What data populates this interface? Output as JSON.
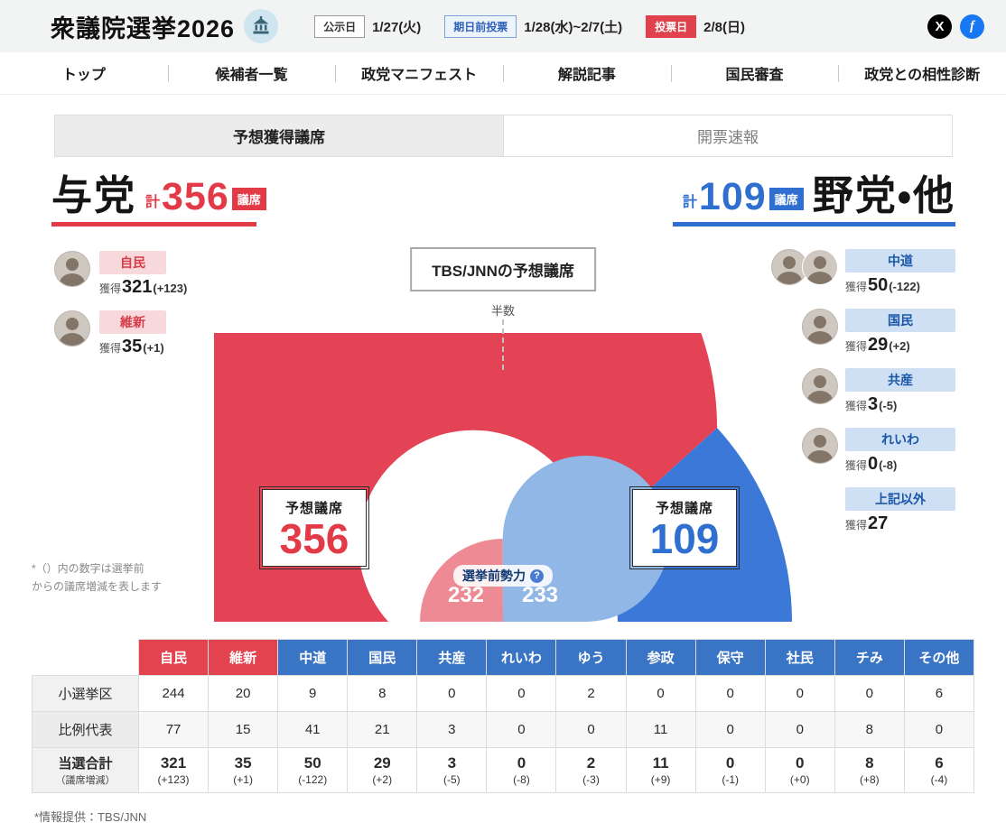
{
  "header": {
    "title": "衆議院選挙2026",
    "dates": [
      {
        "label": "公示日",
        "value": "1/27(火)"
      },
      {
        "label": "期日前投票",
        "value": "1/28(水)~2/7(土)"
      },
      {
        "label": "投票日",
        "value": "2/8(日)"
      }
    ],
    "social": {
      "x": "X",
      "facebook": "f"
    }
  },
  "nav": {
    "items": [
      {
        "label": "トップ"
      },
      {
        "label": "候補者一覧"
      },
      {
        "label": "政党マニフェスト"
      },
      {
        "label": "解説記事"
      },
      {
        "label": "国民審査"
      },
      {
        "label": "政党との相性診断"
      }
    ]
  },
  "tabs": [
    {
      "label": "予想獲得議席"
    },
    {
      "label": "開票速報"
    }
  ],
  "ruling": {
    "name": "与党",
    "total_prefix": "計",
    "total": "356",
    "total_suffix": "議席",
    "accent": "#e23b47",
    "parties": [
      {
        "name": "自民",
        "gain_label": "獲得",
        "seats": "321",
        "change": "(+123)"
      },
      {
        "name": "維新",
        "gain_label": "獲得",
        "seats": "35",
        "change": "(+1)"
      }
    ]
  },
  "opposition": {
    "name": "野党・他",
    "total_prefix": "計",
    "total": "109",
    "total_suffix": "議席",
    "accent": "#2f6fd0",
    "parties": [
      {
        "name": "中道",
        "gain_label": "獲得",
        "seats": "50",
        "change": "(-122)"
      },
      {
        "name": "国民",
        "gain_label": "獲得",
        "seats": "29",
        "change": "(+2)"
      },
      {
        "name": "共産",
        "gain_label": "獲得",
        "seats": "3",
        "change": "(-5)"
      },
      {
        "name": "れいわ",
        "gain_label": "獲得",
        "seats": "0",
        "change": "(-8)"
      },
      {
        "name": "上記以外",
        "gain_label": "獲得",
        "seats": "27",
        "change": ""
      }
    ]
  },
  "center": {
    "box_title": "TBS/JNNの予想議席",
    "half_label": "半数",
    "left_box": {
      "title": "予想議席",
      "value": "356"
    },
    "right_box": {
      "title": "予想議席",
      "value": "109"
    },
    "pre_election_label": "選挙前勢力",
    "help_glyph": "?",
    "pre_left": "232",
    "pre_right": "233"
  },
  "note": {
    "line1": "*（）内の数字は選挙前",
    "line2": "からの議席増減を表します"
  },
  "footer": {
    "credit": "*情報提供：TBS/JNN"
  },
  "chart_data": [
    {
      "type": "pie",
      "subtype": "half-donut",
      "title": "TBS/JNNの予想議席",
      "total": 465,
      "annotations": [
        "半数",
        "予想議席 356",
        "予想議席 109"
      ],
      "series": [
        {
          "name": "与党",
          "value": 356,
          "color": "#e34355"
        },
        {
          "name": "野党・他",
          "value": 109,
          "color": "#3b78d8"
        }
      ]
    },
    {
      "type": "pie",
      "subtype": "half-donut-inner",
      "title": "選挙前勢力",
      "total": 465,
      "series": [
        {
          "name": "与党(選挙前)",
          "value": 232,
          "color": "#ee8a93"
        },
        {
          "name": "野党・他(選挙前)",
          "value": 233,
          "color": "#90b7e6"
        }
      ]
    },
    {
      "type": "table",
      "columns": [
        "自民",
        "維新",
        "中道",
        "国民",
        "共産",
        "れいわ",
        "ゆう",
        "参政",
        "保守",
        "社民",
        "チみ",
        "その他"
      ],
      "column_colors": [
        "red",
        "red",
        "blue",
        "blue",
        "blue",
        "blue",
        "blue",
        "blue",
        "blue",
        "blue",
        "blue",
        "blue"
      ],
      "rows": [
        {
          "label": "小選挙区",
          "values": [
            "244",
            "20",
            "9",
            "8",
            "0",
            "0",
            "2",
            "0",
            "0",
            "0",
            "0",
            "6"
          ]
        },
        {
          "label": "比例代表",
          "values": [
            "77",
            "15",
            "41",
            "21",
            "3",
            "0",
            "0",
            "11",
            "0",
            "0",
            "8",
            "0"
          ]
        },
        {
          "label": "当選合計",
          "sublabel": "（議席増減）",
          "values": [
            "321",
            "35",
            "50",
            "29",
            "3",
            "0",
            "2",
            "11",
            "0",
            "0",
            "8",
            "6"
          ],
          "changes": [
            "(+123)",
            "(+1)",
            "(-122)",
            "(+2)",
            "(-5)",
            "(-8)",
            "(-3)",
            "(+9)",
            "(-1)",
            "(+0)",
            "(+8)",
            "(-4)"
          ]
        }
      ]
    }
  ]
}
